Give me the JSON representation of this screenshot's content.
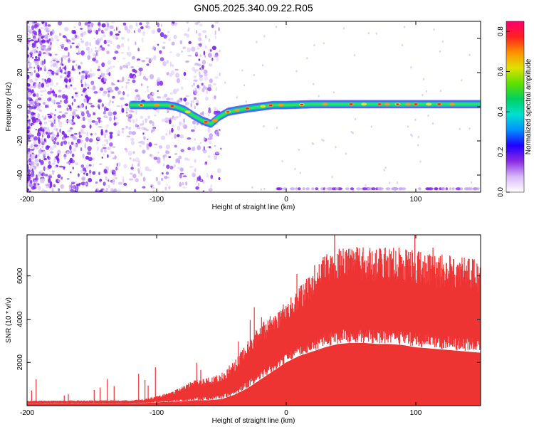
{
  "title": "GN05.2025.340.09.22.R05",
  "chart_data": [
    {
      "type": "heatmap",
      "title": "GN05.2025.340.09.22.R05",
      "xlabel": "Height of straight line (km)",
      "ylabel": "Frequency (Hz)",
      "xlim": [
        -200,
        150
      ],
      "ylim": [
        -50,
        50
      ],
      "xticks": [
        -200,
        -100,
        0,
        100
      ],
      "yticks": [
        -40,
        -20,
        0,
        20,
        40
      ],
      "colorbar": {
        "label": "Normalized spectral amplitude",
        "range": [
          0,
          0.85
        ],
        "ticks": [
          "0.0",
          "0.2",
          "0.4",
          "0.6",
          "0.8"
        ],
        "colors": [
          "#ffffff",
          "#d8b8f8",
          "#8a2be2",
          "#2000ff",
          "#0090ff",
          "#00e0d0",
          "#00d060",
          "#60e000",
          "#e0e000",
          "#ff9000",
          "#ff2020",
          "#ff0070"
        ]
      },
      "ridge_x": [
        -120,
        -110,
        -100,
        -92,
        -85,
        -78,
        -72,
        -65,
        -58,
        -52,
        -45,
        -38,
        -30,
        -20,
        -10,
        0,
        20,
        50,
        80,
        100,
        120,
        150
      ],
      "ridge_y": [
        1,
        1,
        1,
        1,
        0,
        -2,
        -5,
        -8,
        -10,
        -6,
        -3,
        -2,
        -1,
        0,
        1,
        1,
        1.5,
        1.5,
        1.5,
        1.5,
        1.5,
        1.5
      ],
      "noise_band": {
        "x_start": -200,
        "x_end": -80,
        "y_min": -50,
        "y_max": 50
      },
      "bottom_band_y": -48
    },
    {
      "type": "area",
      "xlabel": "Height of straight line (km)",
      "ylabel": "SNR (10 * v/v)",
      "xlim": [
        -200,
        150
      ],
      "ylim": [
        0,
        7900
      ],
      "xticks": [
        -200,
        -100,
        0,
        100
      ],
      "yticks": [
        2000,
        4000,
        6000
      ],
      "color": "#ee3333",
      "x": [
        -200,
        -150,
        -120,
        -110,
        -100,
        -90,
        -80,
        -70,
        -60,
        -50,
        -40,
        -30,
        -20,
        -10,
        0,
        10,
        20,
        30,
        40,
        50,
        60,
        70,
        80,
        90,
        100,
        110,
        120,
        130,
        140,
        150
      ],
      "upper": [
        230,
        250,
        250,
        300,
        450,
        600,
        900,
        1200,
        1300,
        1500,
        2100,
        3000,
        3800,
        4300,
        4800,
        5500,
        6200,
        7000,
        7300,
        7350,
        7350,
        7300,
        7350,
        7300,
        7200,
        7100,
        7000,
        6950,
        6850,
        6750
      ],
      "lower": [
        120,
        120,
        120,
        120,
        150,
        180,
        200,
        250,
        250,
        300,
        500,
        800,
        1200,
        1600,
        2000,
        2300,
        2500,
        2700,
        2850,
        2900,
        2900,
        2850,
        2850,
        2800,
        2700,
        2650,
        2600,
        2550,
        2500,
        2450
      ]
    }
  ]
}
